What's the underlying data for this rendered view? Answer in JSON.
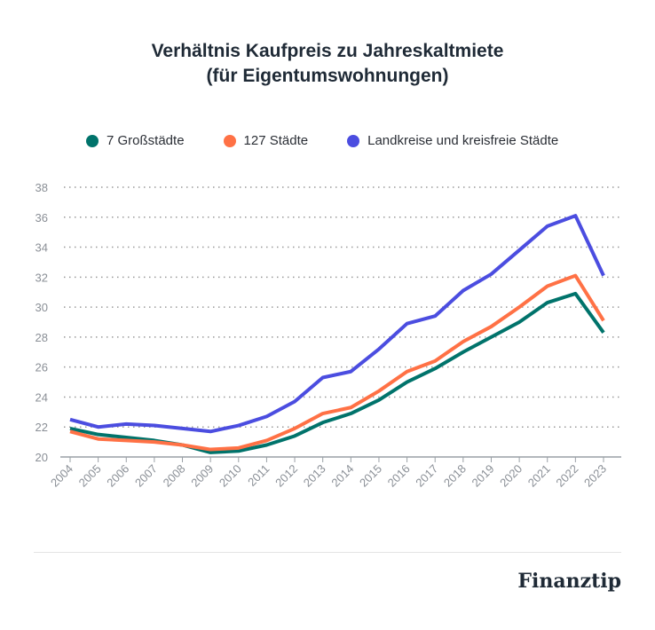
{
  "chart_data": {
    "type": "line",
    "title_line1": "Verhältnis Kaufpreis zu Jahreskaltmiete",
    "title_line2": "(für Eigentumswohnungen)",
    "xlabel": "",
    "ylabel": "",
    "ylim": [
      20,
      38
    ],
    "yticks": [
      "20",
      "22",
      "24",
      "26",
      "28",
      "30",
      "32",
      "34",
      "36",
      "38"
    ],
    "categories": [
      "2004",
      "2005",
      "2006",
      "2007",
      "2008",
      "2009",
      "2010",
      "2011",
      "2012",
      "2013",
      "2014",
      "2015",
      "2016",
      "2017",
      "2018",
      "2019",
      "2020",
      "2021",
      "2022",
      "2023"
    ],
    "grid": true,
    "legend_placement": "top",
    "series": [
      {
        "name": "7 Großstädte",
        "color": "#00736b",
        "values": [
          21.9,
          21.5,
          21.3,
          21.1,
          20.8,
          20.3,
          20.4,
          20.8,
          21.4,
          22.3,
          22.9,
          23.8,
          25.0,
          25.9,
          27.0,
          28.0,
          29.0,
          30.3,
          30.9,
          28.3
        ]
      },
      {
        "name": "127 Städte",
        "color": "#ff7145",
        "values": [
          21.7,
          21.2,
          21.1,
          21.0,
          20.8,
          20.5,
          20.6,
          21.1,
          21.9,
          22.9,
          23.3,
          24.4,
          25.7,
          26.4,
          27.7,
          28.7,
          30.0,
          31.4,
          32.1,
          29.1
        ]
      },
      {
        "name": "Landkreise und kreisfreie Städte",
        "color": "#4b4de0",
        "values": [
          22.5,
          22.0,
          22.2,
          22.1,
          21.9,
          21.7,
          22.1,
          22.7,
          23.7,
          25.3,
          25.7,
          27.2,
          28.9,
          29.4,
          31.1,
          32.2,
          33.8,
          35.4,
          36.1,
          32.1
        ]
      }
    ]
  },
  "brand": "Finanztip"
}
